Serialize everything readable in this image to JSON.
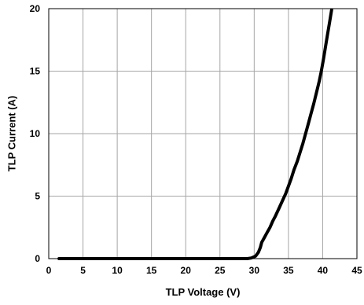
{
  "chart_data": {
    "type": "line",
    "xlabel": "TLP Voltage (V)",
    "ylabel": "TLP Current (A)",
    "xlim": [
      0,
      45
    ],
    "ylim": [
      0,
      20
    ],
    "x_ticks": [
      0,
      5,
      10,
      15,
      20,
      25,
      30,
      35,
      40,
      45
    ],
    "y_ticks": [
      0,
      5,
      10,
      15,
      20
    ],
    "grid": true,
    "legend": "none",
    "line_color": "#000000",
    "series": [
      {
        "x": [
          1.5,
          5,
          10,
          15,
          20,
          25,
          29,
          29.6,
          30.2,
          30.6,
          30.9,
          31.1,
          31.4,
          31.8,
          32.3,
          32.7,
          33.1,
          33.6,
          34.1,
          34.6,
          35.0,
          35.4,
          35.8,
          36.3,
          36.7,
          37.1,
          37.5,
          37.9,
          38.3,
          38.7,
          39.1,
          39.5,
          39.8,
          40.1,
          40.4,
          40.7,
          41.0,
          41.3
        ],
        "y": [
          0,
          0,
          0,
          0,
          0,
          0,
          0,
          0.05,
          0.2,
          0.5,
          0.9,
          1.3,
          1.6,
          2.0,
          2.5,
          3.0,
          3.4,
          4.0,
          4.6,
          5.2,
          5.8,
          6.4,
          7.1,
          7.8,
          8.5,
          9.2,
          10.0,
          10.8,
          11.6,
          12.4,
          13.3,
          14.2,
          15.0,
          15.9,
          16.9,
          17.9,
          18.9,
          19.9
        ]
      }
    ]
  }
}
